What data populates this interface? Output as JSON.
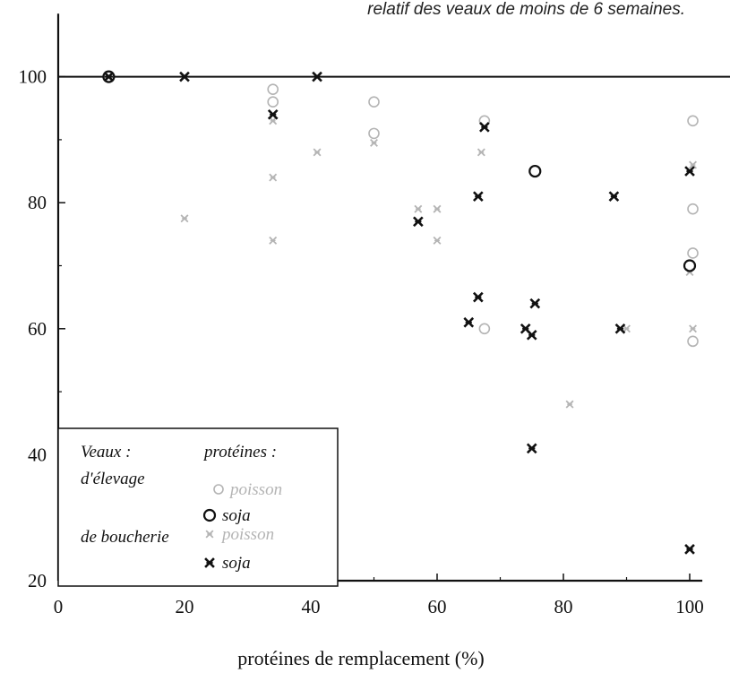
{
  "chart_data": {
    "type": "scatter",
    "subtitle": "relatif des veaux de moins de 6 semaines.",
    "xlabel": "protéines de remplacement (%)",
    "ylabel": "",
    "xlim": [
      0,
      102
    ],
    "ylim": [
      20,
      110
    ],
    "xticks": [
      0,
      20,
      40,
      60,
      80,
      100
    ],
    "yticks": [
      20,
      40,
      60,
      80,
      100
    ],
    "reference_line_y": 100,
    "legend": {
      "placement": "bottom-left",
      "heading_left": "Veaux :",
      "heading_right": "protéines :",
      "group1": "d'élevage",
      "group2": "de boucherie"
    },
    "series": [
      {
        "group": "d'élevage",
        "name": "poisson",
        "marker": "circle",
        "color": "#b4b4b4",
        "points": [
          [
            8,
            100
          ],
          [
            34,
            98
          ],
          [
            34,
            96
          ],
          [
            50,
            96
          ],
          [
            50,
            91
          ],
          [
            67.5,
            93
          ],
          [
            100.5,
            93
          ],
          [
            100.5,
            79
          ],
          [
            100.5,
            72
          ],
          [
            100.5,
            58
          ],
          [
            67.5,
            60
          ]
        ]
      },
      {
        "group": "d'élevage",
        "name": "soja",
        "marker": "circle",
        "color": "#111111",
        "points": [
          [
            8,
            100
          ],
          [
            75.5,
            85
          ],
          [
            100,
            70
          ]
        ]
      },
      {
        "group": "de boucherie",
        "name": "poisson",
        "marker": "cross",
        "color": "#b4b4b4",
        "points": [
          [
            8,
            100
          ],
          [
            20,
            77.5
          ],
          [
            34,
            84
          ],
          [
            34,
            74
          ],
          [
            34,
            93
          ],
          [
            41,
            88
          ],
          [
            50,
            89.5
          ],
          [
            57,
            79
          ],
          [
            60,
            79
          ],
          [
            60,
            74
          ],
          [
            67,
            88
          ],
          [
            81,
            48
          ],
          [
            90,
            60
          ],
          [
            100.5,
            86
          ],
          [
            100.5,
            60
          ],
          [
            100,
            69
          ]
        ]
      },
      {
        "group": "de boucherie",
        "name": "soja",
        "marker": "cross",
        "color": "#111111",
        "points": [
          [
            8,
            100
          ],
          [
            20,
            100
          ],
          [
            34,
            94
          ],
          [
            41,
            100
          ],
          [
            57,
            77
          ],
          [
            66.5,
            81
          ],
          [
            66.5,
            65
          ],
          [
            65,
            61
          ],
          [
            67.5,
            92
          ],
          [
            74,
            60
          ],
          [
            75,
            59
          ],
          [
            75.5,
            64
          ],
          [
            75,
            41
          ],
          [
            88,
            81
          ],
          [
            89,
            60
          ],
          [
            100,
            85
          ],
          [
            100,
            25
          ]
        ]
      }
    ]
  }
}
